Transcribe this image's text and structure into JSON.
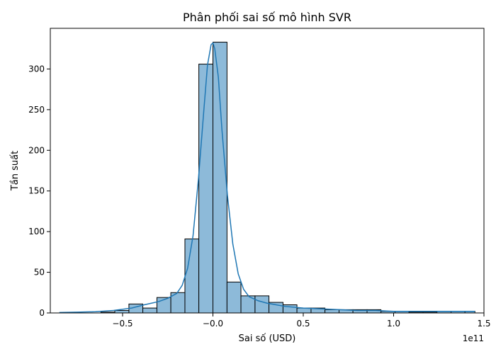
{
  "chart_data": {
    "type": "histogram",
    "title": "Phân phối sai số mô hình SVR",
    "xlabel": "Sai số (USD)",
    "ylabel": "Tần suất",
    "x_offset_label": "1e11",
    "x_scale": 100000000000.0,
    "xlim": [
      -0.9,
      1.5
    ],
    "ylim": [
      0,
      350
    ],
    "xticks": [
      -0.5,
      0.0,
      0.5,
      1.0,
      1.5
    ],
    "xtick_labels": [
      "−0.5",
      "−0.0",
      "0.5",
      "1.0",
      "1.5"
    ],
    "yticks": [
      0,
      50,
      100,
      150,
      200,
      250,
      300
    ],
    "ytick_labels": [
      "0",
      "50",
      "100",
      "150",
      "200",
      "250",
      "300"
    ],
    "bin_edges": [
      -0.853,
      -0.775,
      -0.698,
      -0.62,
      -0.543,
      -0.465,
      -0.388,
      -0.31,
      -0.233,
      -0.155,
      -0.078,
      0.0,
      0.078,
      0.155,
      0.233,
      0.31,
      0.388,
      0.465,
      0.543,
      0.62,
      0.698,
      0.775,
      0.853,
      0.93,
      1.008,
      1.085,
      1.163,
      1.24,
      1.318,
      1.395,
      1.45
    ],
    "counts": [
      0,
      0,
      0,
      1,
      3,
      11,
      6,
      19,
      25,
      91,
      306,
      333,
      38,
      21,
      21,
      13,
      10,
      6,
      6,
      4,
      4,
      4,
      4,
      2,
      2,
      1,
      1,
      2,
      2,
      2
    ],
    "kde": {
      "x": [
        -0.85,
        -0.75,
        -0.65,
        -0.55,
        -0.45,
        -0.38,
        -0.3,
        -0.25,
        -0.2,
        -0.17,
        -0.14,
        -0.11,
        -0.08,
        -0.05,
        -0.03,
        -0.01,
        0.0,
        0.01,
        0.03,
        0.05,
        0.08,
        0.11,
        0.14,
        0.17,
        0.2,
        0.25,
        0.3,
        0.4,
        0.5,
        0.6,
        0.7,
        0.8,
        0.9,
        1.0,
        1.1,
        1.2,
        1.3,
        1.4,
        1.45
      ],
      "y": [
        0.5,
        1,
        1.5,
        3,
        6,
        10,
        14,
        18,
        24,
        34,
        55,
        95,
        165,
        250,
        305,
        330,
        332,
        325,
        290,
        225,
        145,
        85,
        48,
        29,
        20,
        15,
        12,
        8,
        6,
        5,
        4,
        3,
        3,
        2,
        2,
        2,
        2,
        2,
        2
      ]
    },
    "colors": {
      "bar_fill": "#8dbad9",
      "bar_edge": "#000000",
      "kde_line": "#1f77b4"
    },
    "grid": false,
    "legend": "none"
  }
}
